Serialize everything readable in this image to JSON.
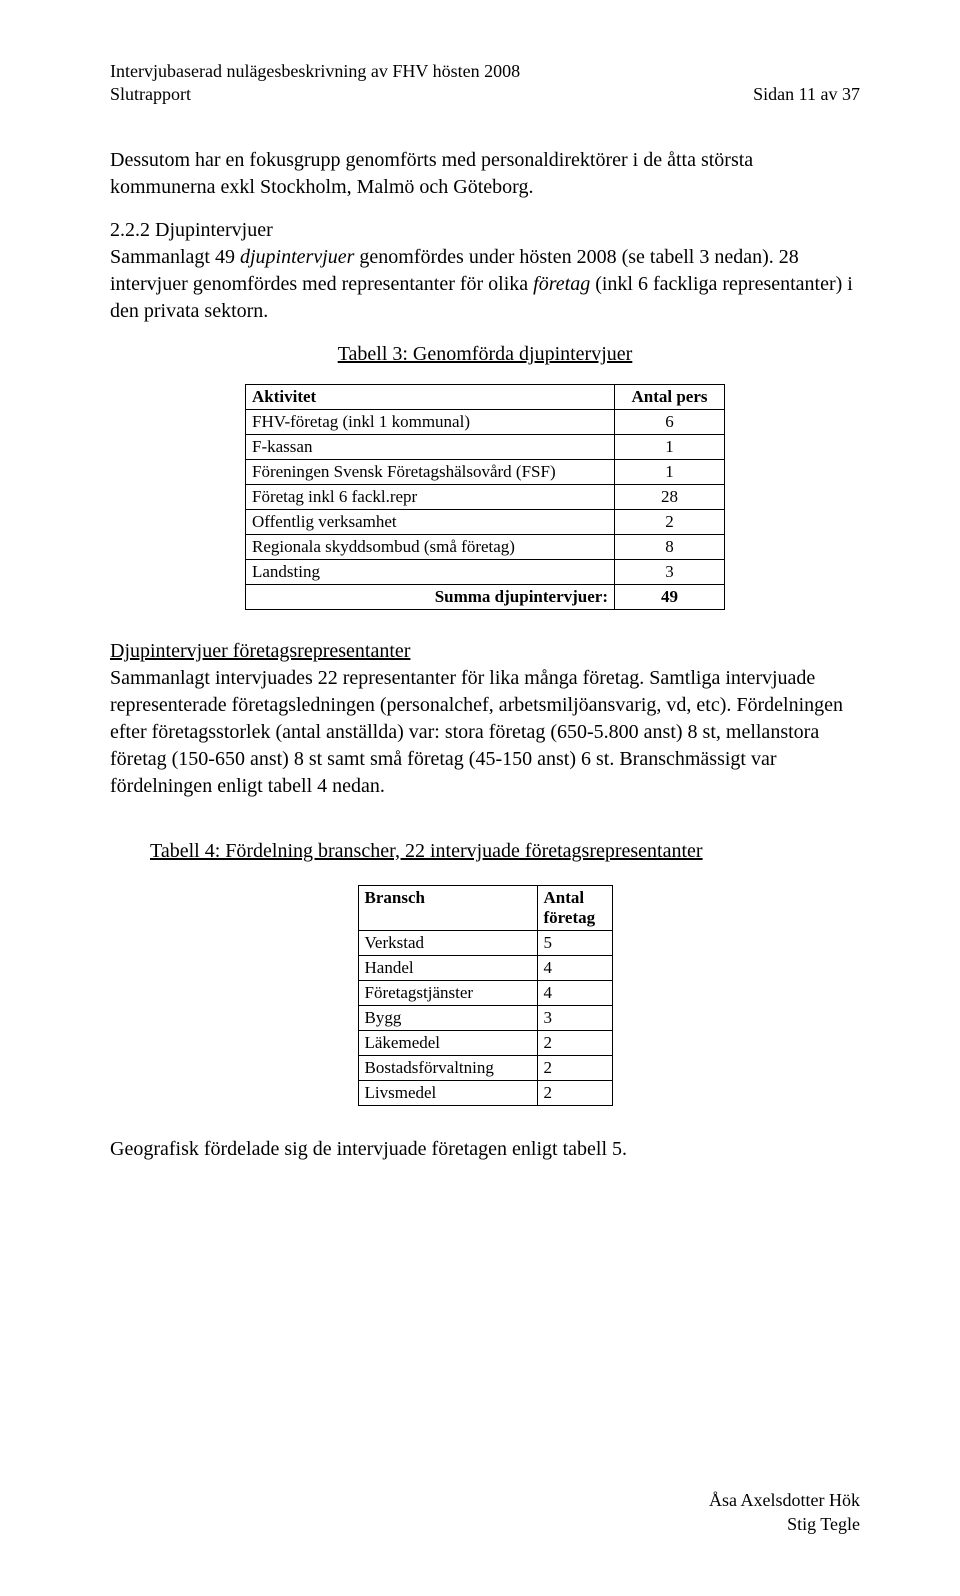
{
  "header": {
    "left_line1": "Intervjubaserad nulägesbeskrivning av FHV hösten 2008",
    "left_line2": "Slutrapport",
    "right_line": "Sidan 11 av 37"
  },
  "para1": "Dessutom har en fokusgrupp genomförts med personaldirektörer i de åtta största kommunerna exkl Stockholm, Malmö och Göteborg.",
  "section_222": {
    "heading": "2.2.2 Djupintervjuer",
    "run1": "Sammanlagt 49 ",
    "run2_italic": "djupintervjuer",
    "run3": " genomfördes under hösten 2008 (se tabell 3 nedan). 28 intervjuer genomfördes med representanter för olika ",
    "run4_italic": "företag",
    "run5": " (inkl 6 fackliga representanter) i den privata sektorn."
  },
  "table3": {
    "caption": "Tabell 3: Genomförda djupintervjuer",
    "col1": "Aktivitet",
    "col2": "Antal pers",
    "rows": [
      {
        "label": "FHV-företag (inkl 1 kommunal)",
        "value": "6"
      },
      {
        "label": "F-kassan",
        "value": "1"
      },
      {
        "label": "Föreningen Svensk Företagshälsovård (FSF)",
        "value": "1"
      },
      {
        "label": "Företag inkl 6 fackl.repr",
        "value": "28"
      },
      {
        "label": "Offentlig verksamhet",
        "value": "2"
      },
      {
        "label": "Regionala skyddsombud (små företag)",
        "value": "8"
      },
      {
        "label": "Landsting",
        "value": "3"
      }
    ],
    "sum_label": "Summa djupintervjuer:",
    "sum_value": "49"
  },
  "djup_section": {
    "heading": "Djupintervjuer företagsrepresentanter",
    "body": "Sammanlagt intervjuades 22 representanter för lika många företag. Samtliga intervjuade representerade företagsledningen (personalchef, arbetsmiljöansvarig, vd, etc). Fördelningen efter företagsstorlek (antal anställda) var: stora företag (650-5.800 anst) 8 st, mellanstora företag (150-650 anst) 8 st samt små företag (45-150 anst) 6 st. Branschmässigt var fördelningen enligt tabell 4 nedan."
  },
  "table4": {
    "caption": "Tabell 4: Fördelning branscher, 22 intervjuade företagsrepresentanter",
    "col1": "Bransch",
    "col2a": "Antal",
    "col2b": "företag",
    "rows": [
      {
        "label": "Verkstad",
        "value": "5"
      },
      {
        "label": "Handel",
        "value": "4"
      },
      {
        "label": "Företagstjänster",
        "value": "4"
      },
      {
        "label": "Bygg",
        "value": "3"
      },
      {
        "label": "Läkemedel",
        "value": "2"
      },
      {
        "label": "Bostadsförvaltning",
        "value": "2"
      },
      {
        "label": "Livsmedel",
        "value": "2"
      }
    ]
  },
  "closing": "Geografisk fördelade sig de intervjuade företagen enligt tabell 5.",
  "footer": {
    "line1": "Åsa Axelsdotter Hök",
    "line2": "Stig Tegle"
  }
}
